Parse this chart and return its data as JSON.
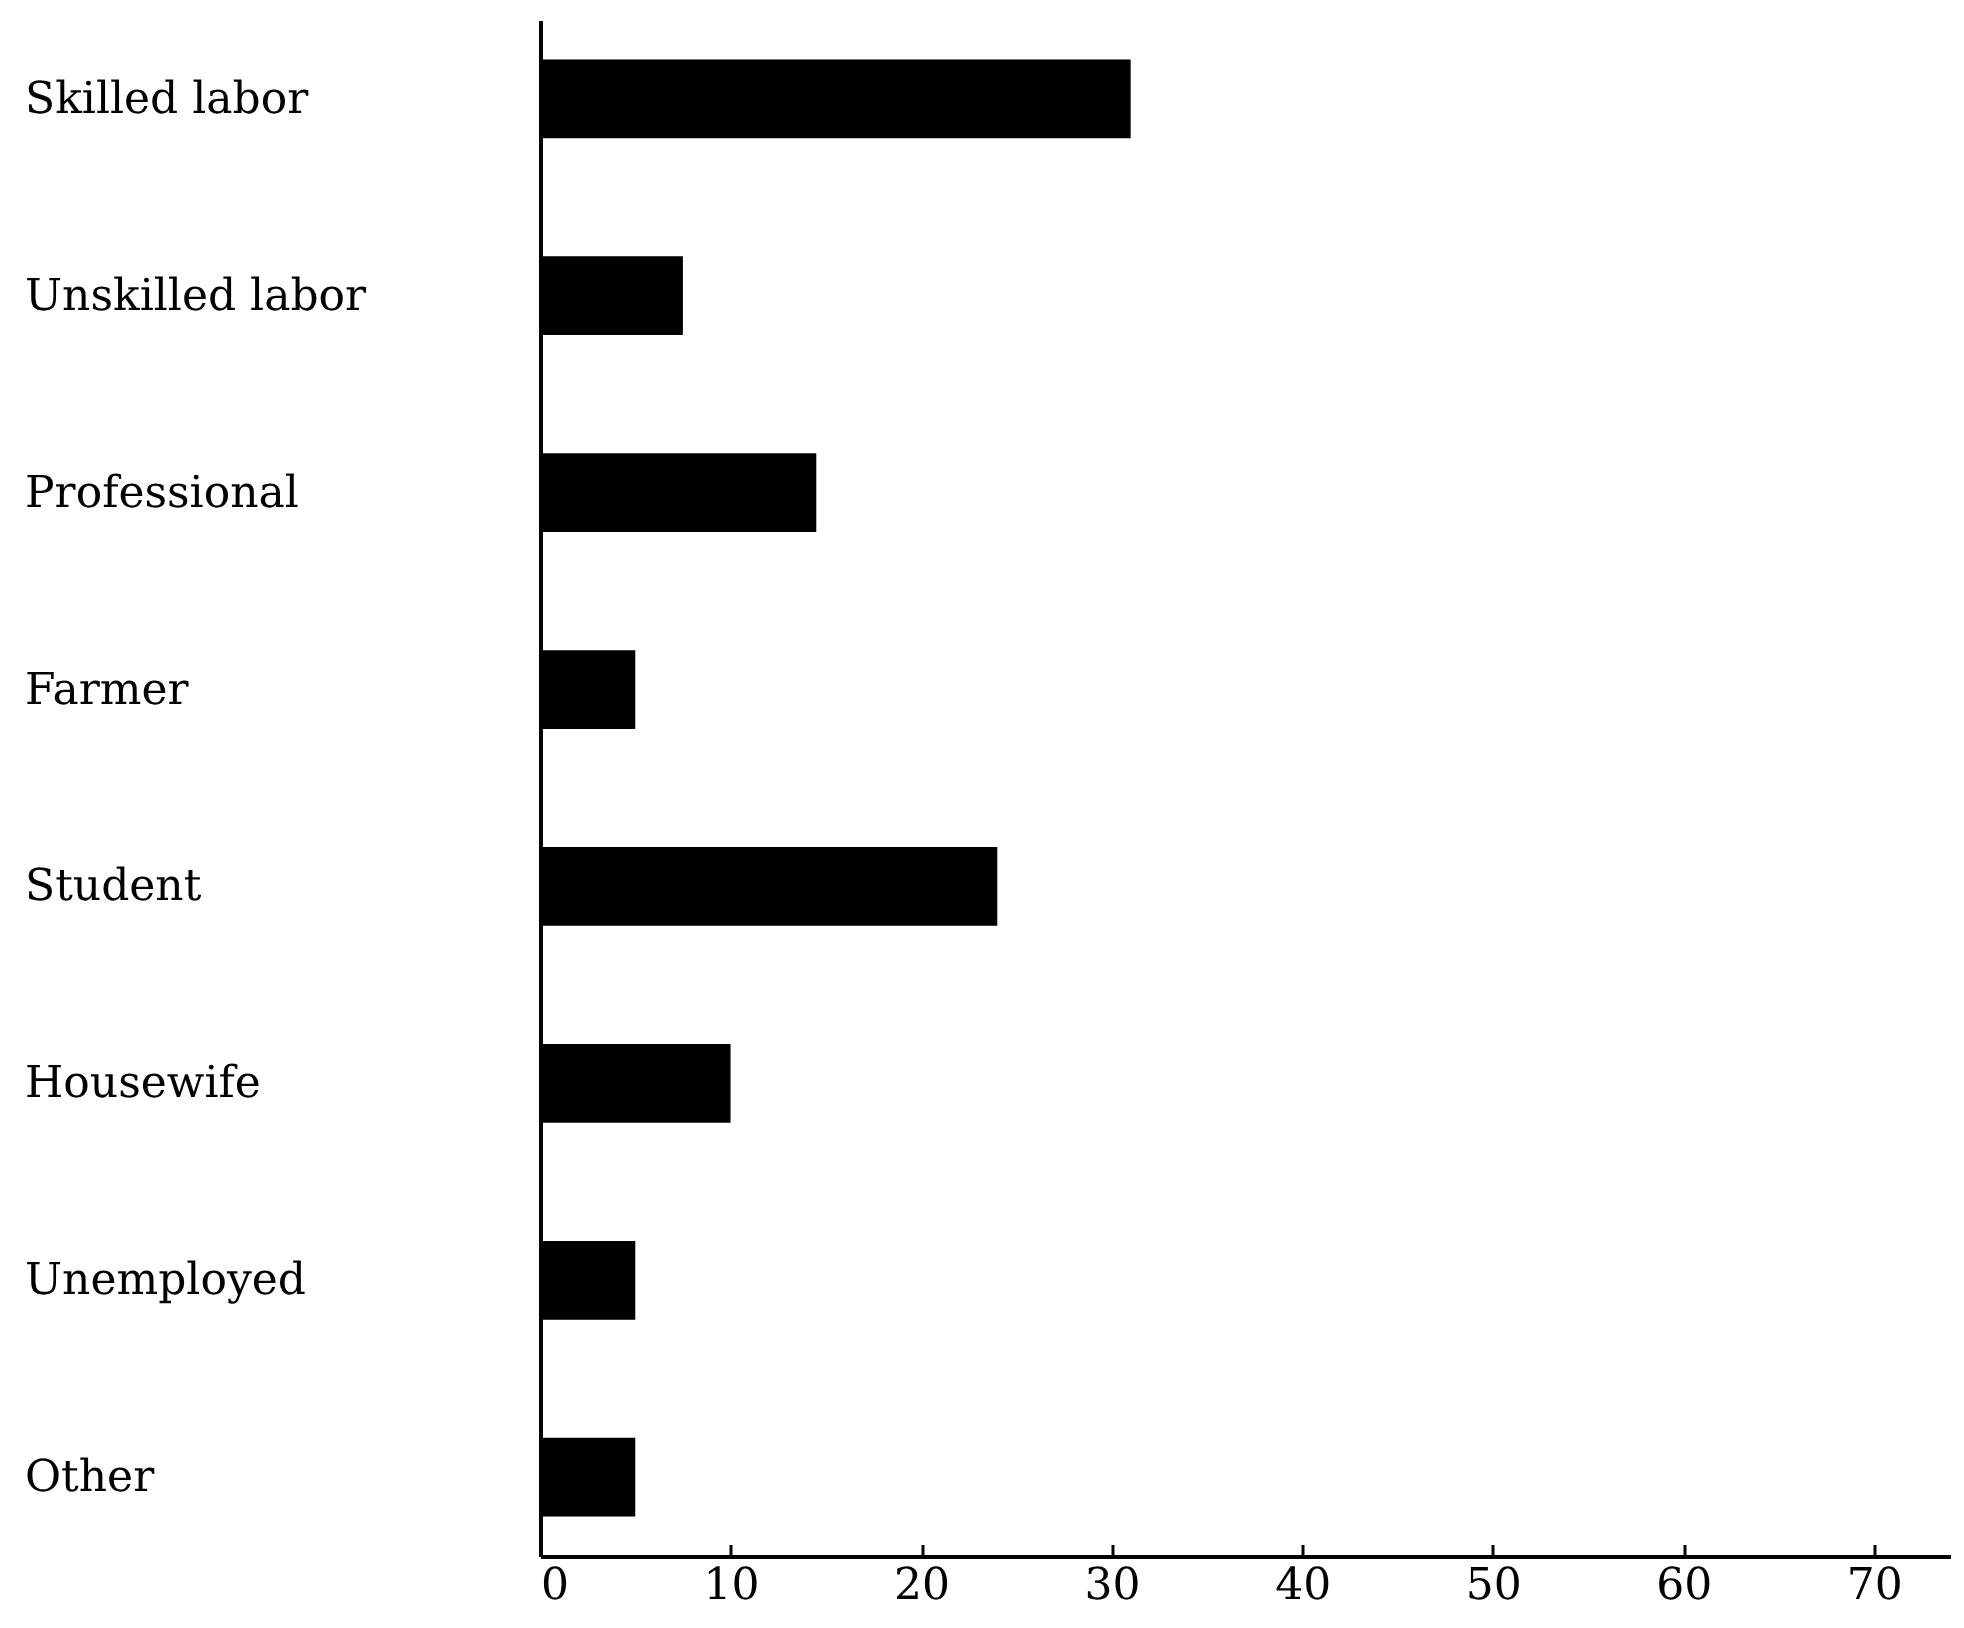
{
  "chart_data": {
    "type": "bar",
    "orientation": "horizontal",
    "categories": [
      "Skilled labor",
      "Unskilled labor",
      "Professional",
      "Farmer",
      "Student",
      "Housewife",
      "Unemployed",
      "Other"
    ],
    "values": [
      31,
      7.5,
      14.5,
      5,
      24,
      10,
      5,
      5
    ],
    "color": "#000000",
    "xlim": [
      0,
      74
    ],
    "xticks": [
      0,
      10,
      20,
      30,
      40,
      50,
      60,
      70
    ],
    "grid": false
  }
}
